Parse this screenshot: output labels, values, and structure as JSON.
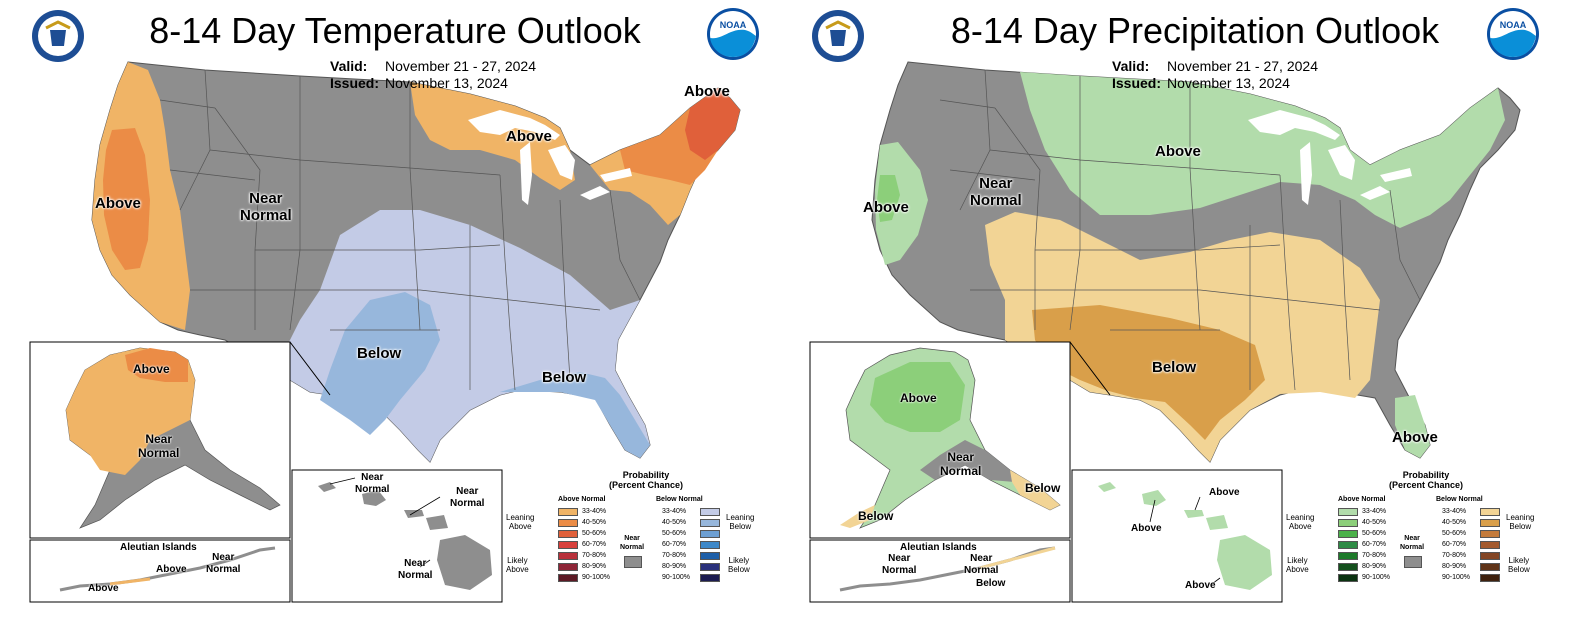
{
  "colors": {
    "near_normal": "#8e8e8e",
    "above_33_40": "#f0b466",
    "above_40_50": "#eb8c46",
    "above_50_60": "#e0603a",
    "below_33_40": "#c3cbe6",
    "below_40_50": "#97b7dc",
    "precip_above_33_40": "#b2dcab",
    "precip_above_40_50": "#8ccf7a",
    "precip_below_33_40": "#f2d495",
    "precip_below_40_50": "#d99f4a"
  },
  "temperature": {
    "title": "8-14 Day Temperature Outlook",
    "valid_label": "Valid:",
    "valid_value": "November 21 - 27, 2024",
    "issued_label": "Issued:",
    "issued_value": "November 13, 2024",
    "labels": {
      "west_above": "Above",
      "near_normal": "Near\nNormal",
      "lakes_above": "Above",
      "ne_above": "Above",
      "plains_below": "Below",
      "gulf_below": "Below",
      "ak_above": "Above",
      "ak_near": "Near\nNormal",
      "aleutian_title": "Aleutian Islands",
      "aleutian_above1": "Above",
      "aleutian_above2": "Above",
      "aleutian_near": "Near\nNormal",
      "hi_near1": "Near\nNormal",
      "hi_near2": "Near\nNormal",
      "hi_near3": "Near\nNormal"
    }
  },
  "precipitation": {
    "title": "8-14 Day Precipitation Outlook",
    "valid_label": "Valid:",
    "valid_value": "November 21 - 27, 2024",
    "issued_label": "Issued:",
    "issued_value": "November 13, 2024",
    "labels": {
      "west_above": "Above",
      "near_normal": "Near\nNormal",
      "north_above": "Above",
      "south_below": "Below",
      "fl_above": "Above",
      "ak_above": "Above",
      "ak_near": "Near\nNormal",
      "ak_below1": "Below",
      "ak_below2": "Below",
      "aleutian_title": "Aleutian Islands",
      "aleutian_near1": "Near\nNormal",
      "aleutian_near2": "Near\nNormal",
      "aleutian_below": "Below",
      "hi_above1": "Above",
      "hi_above2": "Above",
      "hi_above3": "Above"
    }
  },
  "legend": {
    "title": "Probability\n(Percent Chance)",
    "above_header": "Above Normal",
    "below_header": "Below Normal",
    "near_label": "Near\nNormal",
    "leaning_above": "Leaning\nAbove",
    "likely_above": "Likely\nAbove",
    "leaning_below": "Leaning\nBelow",
    "likely_below": "Likely\nBelow",
    "ranges": [
      "33-40%",
      "40-50%",
      "50-60%",
      "60-70%",
      "70-80%",
      "80-90%",
      "90-100%"
    ],
    "temp_above_colors": [
      "#f0b466",
      "#eb8c46",
      "#e0603a",
      "#d8403c",
      "#b8313b",
      "#8e2537",
      "#5c1a25"
    ],
    "temp_below_colors": [
      "#c3cbe6",
      "#97b7dc",
      "#6d9fd2",
      "#3d88c8",
      "#1d5fa8",
      "#29307a",
      "#1c1c50"
    ],
    "precip_above_colors": [
      "#b2dcab",
      "#8ccf7a",
      "#4bb14a",
      "#2e8b45",
      "#1d7a2a",
      "#14501d",
      "#0b3311"
    ],
    "precip_below_colors": [
      "#f2d495",
      "#d99f4a",
      "#c37a3a",
      "#a45a2e",
      "#834524",
      "#5f3318",
      "#3f220f"
    ]
  }
}
